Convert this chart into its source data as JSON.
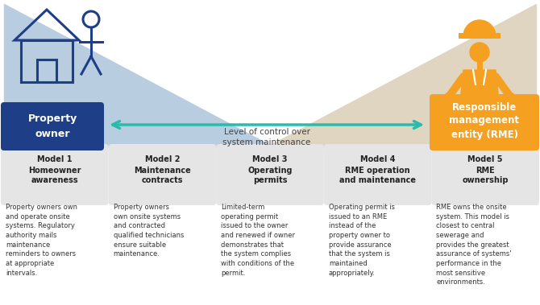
{
  "bg_color": "#ffffff",
  "blue_triangle_color": "#b8cde0",
  "beige_triangle_color": "#e0d5c0",
  "property_owner_box_color": "#1e3f87",
  "rme_box_color": "#f5a020",
  "arrow_color": "#2abcaa",
  "model_box_color": "#e5e5e5",
  "text_dark": "#222222",
  "text_desc": "#333333",
  "model_headers": [
    "Model 1",
    "Model 2",
    "Model 3",
    "Model 4",
    "Model 5"
  ],
  "model_subtitles": [
    "Homeowner\nawareness",
    "Maintenance\ncontracts",
    "Operating\npermits",
    "RME operation\nand maintenance",
    "RME\nownership"
  ],
  "model_descriptions": [
    "Property owners own\nand operate onsite\nsystems. Regulatory\nauthority mails\nmaintenance\nreminders to owners\nat appropriate\nintervals.",
    "Property owners\nown onsite systems\nand contracted\nqualified technicians\nensure suitable\nmaintenance.",
    "Limited-term\noperating permit\nissued to the owner\nand renewed if owner\ndemonstrates that\nthe system complies\nwith conditions of the\npermit.",
    "Operating permit is\nissued to an RME\ninstead of the\nproperty owner to\nprovide assurance\nthat the system is\nmaintained\nappropriately.",
    "RME owns the onsite\nsystem. This model is\nclosest to central\nsewerage and\nprovides the greatest\nassurance of systems'\nperformance in the\nmost sensitive\nenvironments."
  ],
  "arrow_label": "Level of control over\nsystem maintenance",
  "property_owner_label": "Property\nowner",
  "rme_label": "Responsible\nmanagement\nentity (RME)",
  "icon_blue_color": "#1e3f87",
  "icon_orange_color": "#f5a020",
  "fig_width": 6.7,
  "fig_height": 3.79,
  "dpi": 100
}
